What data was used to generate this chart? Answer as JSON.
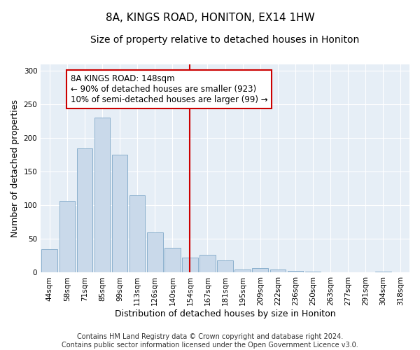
{
  "title": "8A, KINGS ROAD, HONITON, EX14 1HW",
  "subtitle": "Size of property relative to detached houses in Honiton",
  "xlabel": "Distribution of detached houses by size in Honiton",
  "ylabel": "Number of detached properties",
  "categories": [
    "44sqm",
    "58sqm",
    "71sqm",
    "85sqm",
    "99sqm",
    "113sqm",
    "126sqm",
    "140sqm",
    "154sqm",
    "167sqm",
    "181sqm",
    "195sqm",
    "209sqm",
    "222sqm",
    "236sqm",
    "250sqm",
    "263sqm",
    "277sqm",
    "291sqm",
    "304sqm",
    "318sqm"
  ],
  "values": [
    35,
    107,
    185,
    230,
    175,
    115,
    60,
    37,
    22,
    27,
    18,
    5,
    7,
    5,
    3,
    2,
    0,
    0,
    0,
    2,
    0
  ],
  "bar_color": "#c9d9ea",
  "bar_edge_color": "#7fa8c8",
  "vline_color": "#cc0000",
  "annotation_text": "8A KINGS ROAD: 148sqm\n← 90% of detached houses are smaller (923)\n10% of semi-detached houses are larger (99) →",
  "annotation_box_color": "#cc0000",
  "background_color": "#e6eef6",
  "ylim": [
    0,
    310
  ],
  "yticks": [
    0,
    50,
    100,
    150,
    200,
    250,
    300
  ],
  "footer": "Contains HM Land Registry data © Crown copyright and database right 2024.\nContains public sector information licensed under the Open Government Licence v3.0.",
  "title_fontsize": 11,
  "subtitle_fontsize": 10,
  "xlabel_fontsize": 9,
  "ylabel_fontsize": 9,
  "tick_fontsize": 7.5,
  "annotation_fontsize": 8.5,
  "footer_fontsize": 7
}
